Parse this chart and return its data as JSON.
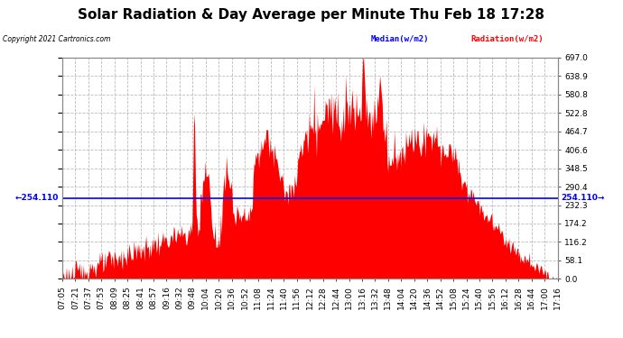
{
  "title": "Solar Radiation & Day Average per Minute Thu Feb 18 17:28",
  "copyright": "Copyright 2021 Cartronics.com",
  "legend_median": "Median(w/m2)",
  "legend_radiation": "Radiation(w/m2)",
  "median_value": 254.11,
  "ymin": 0.0,
  "ymax": 697.0,
  "yticks": [
    0.0,
    58.1,
    116.2,
    174.2,
    232.3,
    290.4,
    348.5,
    406.6,
    464.7,
    522.8,
    580.8,
    638.9,
    697.0
  ],
  "ytick_labels": [
    "0.0",
    "58.1",
    "116.2",
    "174.2",
    "232.3",
    "290.4",
    "348.5",
    "406.6",
    "464.7",
    "522.8",
    "580.8",
    "638.9",
    "697.0"
  ],
  "background_color": "#ffffff",
  "plot_bg_color": "#ffffff",
  "bar_color": "#ff0000",
  "median_color": "#0000ff",
  "grid_color": "#bbbbbb",
  "title_fontsize": 11,
  "tick_fontsize": 6.5,
  "xtick_labels": [
    "07:05",
    "07:21",
    "07:37",
    "07:53",
    "08:09",
    "08:25",
    "08:41",
    "08:57",
    "09:16",
    "09:32",
    "09:48",
    "10:04",
    "10:20",
    "10:36",
    "10:52",
    "11:08",
    "11:24",
    "11:40",
    "11:56",
    "12:12",
    "12:28",
    "12:44",
    "13:00",
    "13:16",
    "13:32",
    "13:48",
    "14:04",
    "14:20",
    "14:36",
    "14:52",
    "15:08",
    "15:24",
    "15:40",
    "15:56",
    "16:12",
    "16:28",
    "16:44",
    "17:00",
    "17:16"
  ]
}
